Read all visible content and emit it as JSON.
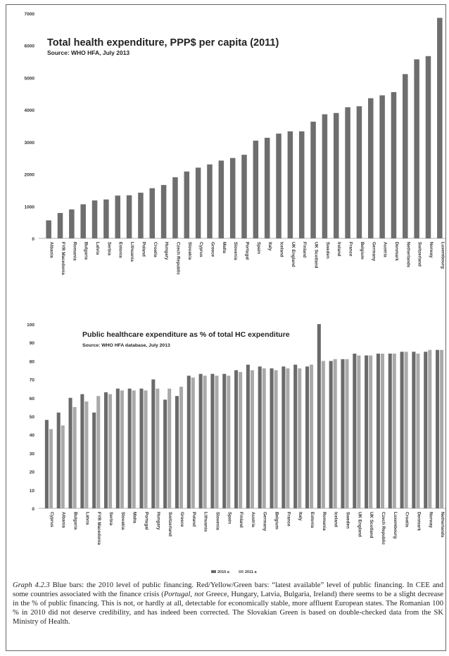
{
  "chart_data": [
    {
      "type": "bar",
      "title": "Total health expenditure, PPP$ per capita (2011)",
      "subtitle": "Source: WHO HFA, July 2013",
      "ylim": [
        0,
        7000
      ],
      "yticks": [
        0,
        1000,
        2000,
        3000,
        4000,
        5000,
        6000,
        7000
      ],
      "grid": false,
      "categories": [
        "Albania",
        "FYR Macedonia",
        "Romania",
        "Bulgaria",
        "Latvia",
        "Serbia",
        "Estonia",
        "Lithuania",
        "Poland",
        "Croatia",
        "Hungary",
        "Czech Republic",
        "Slovakia",
        "Cyprus",
        "Greece",
        "Malta",
        "Slovenia",
        "Portugal",
        "Spain",
        "Italy",
        "Iceland",
        "UK England",
        "Finland",
        "UK Scotland",
        "Sweden",
        "Ireland",
        "France",
        "Belgium",
        "Germany",
        "Austria",
        "Denmark",
        "Netherlands",
        "Switzerland",
        "Norway",
        "Luxembourg"
      ],
      "values": [
        560,
        790,
        900,
        1060,
        1180,
        1210,
        1330,
        1340,
        1420,
        1560,
        1660,
        1900,
        2080,
        2200,
        2300,
        2420,
        2500,
        2600,
        3040,
        3130,
        3260,
        3330,
        3330,
        3630,
        3860,
        3900,
        4080,
        4110,
        4360,
        4450,
        4550,
        5110,
        5570,
        5670,
        6860
      ],
      "color": "#6e6e6e"
    },
    {
      "type": "bar",
      "title": "Public healthcare expenditure as % of total HC expenditure",
      "subtitle": "Source: WHO HFA database, July 2013",
      "ylim": [
        0,
        100
      ],
      "yticks": [
        0,
        10,
        20,
        30,
        40,
        50,
        60,
        70,
        80,
        90,
        100
      ],
      "grid": false,
      "legend": [
        "2010 a",
        "2011 a"
      ],
      "legend_position": "bottom",
      "categories": [
        "Cyprus",
        "Albania",
        "Bulgaria",
        "Latvia",
        "FYR Macedonia",
        "Serbia",
        "Slovakia",
        "Malta",
        "Portugal",
        "Hungary",
        "Switzerland",
        "Greece",
        "Poland",
        "Lithuania",
        "Slovenia",
        "Spain",
        "Finland",
        "Austria",
        "Germany",
        "Belgium",
        "France",
        "Italy",
        "Estonia",
        "Romania",
        "Iceland",
        "Sweden",
        "UK England",
        "UK Scotland",
        "Czech Republic",
        "Luxembourg",
        "Croatia",
        "Denmark",
        "Norway",
        "Netherlands"
      ],
      "series": [
        {
          "name": "2010 a",
          "values": [
            48,
            52,
            60,
            62,
            52,
            63,
            65,
            65,
            65,
            70,
            59,
            61,
            72,
            73,
            73,
            73,
            75,
            78,
            77,
            76,
            77,
            78,
            77,
            100,
            80,
            81,
            84,
            83,
            84,
            84,
            85,
            85,
            85,
            86
          ],
          "color": "#6a6a6a"
        },
        {
          "name": "2011 a",
          "values": [
            43,
            45,
            55,
            58,
            61,
            62,
            64,
            64,
            64,
            65,
            65,
            66,
            71,
            72,
            72,
            72,
            74,
            75,
            76,
            75,
            76,
            76,
            78,
            80,
            81,
            81,
            83,
            83,
            84,
            84,
            85,
            84,
            86,
            86
          ],
          "color": "#a9a9a9"
        }
      ]
    }
  ],
  "caption": {
    "lead": "Graph 4.2.3",
    "before_italic_1": " Blue bars: the 2010 level of public financing. Red/Yellow/Green bars: “latest available” level of public financing. In CEE and some countries associated with the finance crisis (",
    "italic_1": "Portugal, not",
    "between": " Greece, Hungary, Latvia, Bulgaria, Ireland) there seems to be a slight decrease in the % of public financing. This is not, or hardly at all, detectable for economically stable, more affluent European states. The Romanian 100 % in 2010 did not deserve credibility, and has indeed been corrected. The Slovakian Green is based on double-checked data from the SK Ministry of Health."
  }
}
